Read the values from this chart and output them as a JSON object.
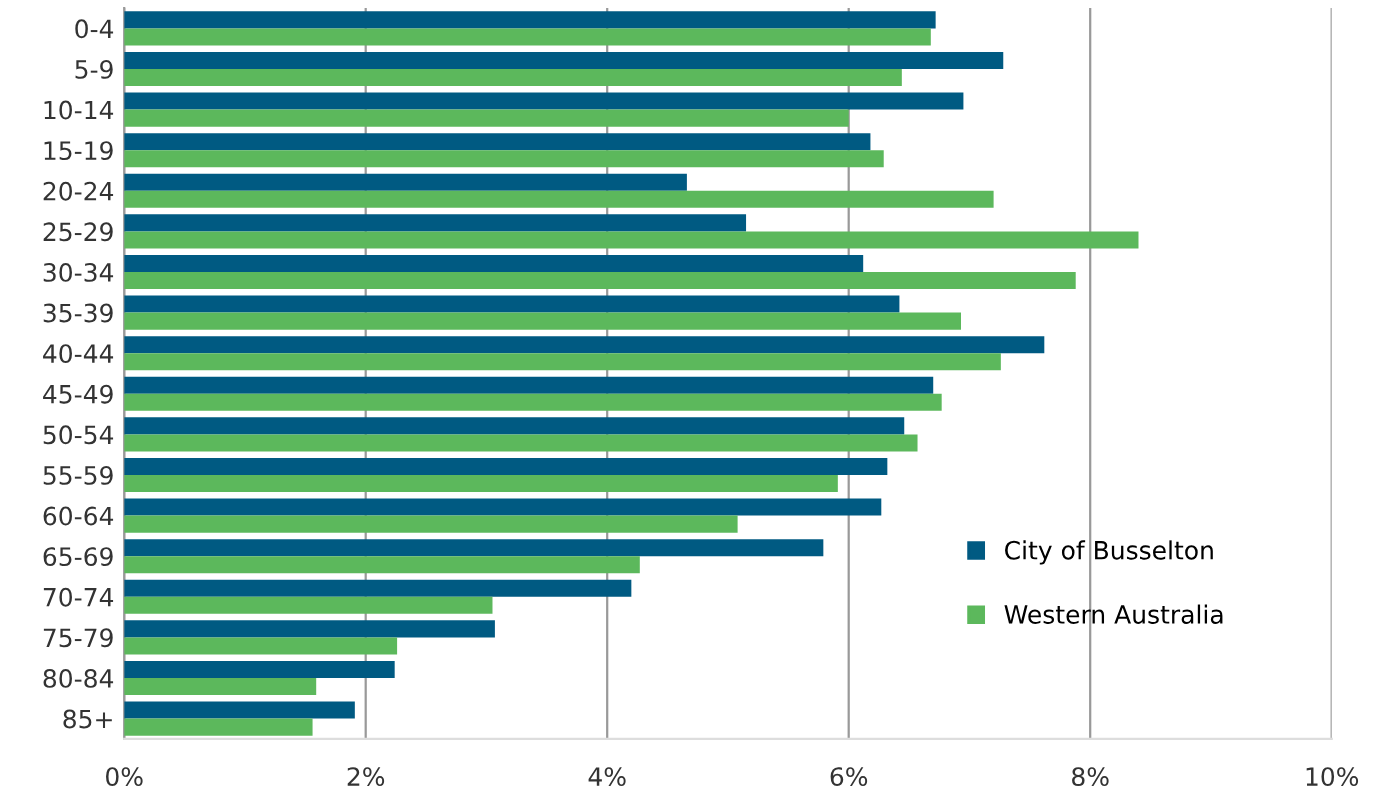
{
  "chart_data": {
    "type": "bar",
    "orientation": "horizontal",
    "categories": [
      "0-4",
      "5-9",
      "10-14",
      "15-19",
      "20-24",
      "25-29",
      "30-34",
      "35-39",
      "40-44",
      "45-49",
      "50-54",
      "55-59",
      "60-64",
      "65-69",
      "70-74",
      "75-79",
      "80-84",
      "85+"
    ],
    "series": [
      {
        "name": "City of Busselton",
        "color": "#005a82",
        "values": [
          6.72,
          7.28,
          6.95,
          6.18,
          4.66,
          5.15,
          6.12,
          6.42,
          7.62,
          6.7,
          6.46,
          6.32,
          6.27,
          5.79,
          4.2,
          3.07,
          2.24,
          1.91
        ]
      },
      {
        "name": "Western Australia",
        "color": "#5cb85c",
        "values": [
          6.68,
          6.44,
          6.0,
          6.29,
          7.2,
          8.4,
          7.88,
          6.93,
          7.26,
          6.77,
          6.57,
          5.91,
          5.08,
          4.27,
          3.05,
          2.26,
          1.59,
          1.56
        ]
      }
    ],
    "xlim": [
      0,
      10
    ],
    "xticks": [
      {
        "value": 0,
        "label": "0%"
      },
      {
        "value": 2,
        "label": "2%"
      },
      {
        "value": 4,
        "label": "4%"
      },
      {
        "value": 6,
        "label": "6%"
      },
      {
        "value": 8,
        "label": "8%"
      },
      {
        "value": 10,
        "label": "10%"
      }
    ],
    "grid": "x",
    "legend": "bottom right"
  }
}
